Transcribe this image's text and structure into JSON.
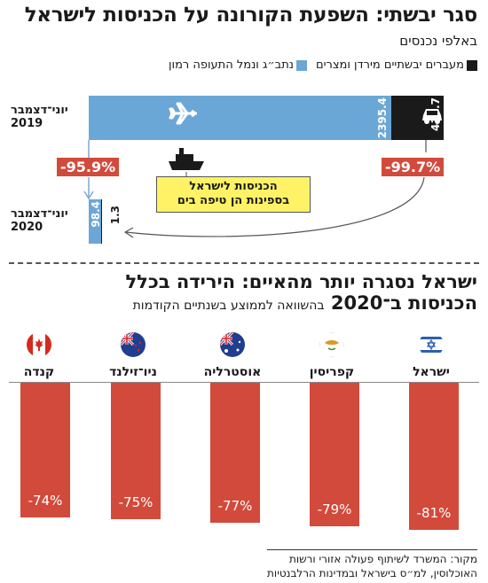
{
  "title": "סגר יבשתי: השפעת הקורונה על הכניסות לישראל",
  "subtitle": "באלפי נכנסים",
  "legend": {
    "items": [
      {
        "label": "מעברים יבשתיים מירדן ומצרים",
        "color": "#1a1a1a"
      },
      {
        "label": "נתב״ג ונמל התעופה רמון",
        "color": "#6ba7d6"
      }
    ]
  },
  "colors": {
    "air": "#6ba7d6",
    "land": "#1a1a1a",
    "drop": "#d24a3b",
    "callout": "#fff266"
  },
  "period_labels": {
    "p2019_line1": "יוני־דצמבר",
    "p2019_line2": "2019",
    "p2020_line1": "יוני־דצמבר",
    "p2020_line2": "2020"
  },
  "icons": {
    "air": "airplane-icon",
    "land": "car-icon",
    "sea": "ship-icon"
  },
  "drops": {
    "air": "-95.9%",
    "land": "-99.7%"
  },
  "callout": {
    "line1": "הכניסות לישראל",
    "line2": "בספינות הן טיפה בים"
  },
  "section2": {
    "title_line1": "ישראל נסגרה יותר מהאיים: הירידה בכלל",
    "title_line2": "הכניסות ב־2020",
    "note": "בהשוואה לממוצע בשנתיים הקודמות"
  },
  "source": {
    "line1": "מקור: המשרד לשיתוף פעולה אזורי ורשות",
    "line2": "האוכלוסין, למ״ס בישראל ובמדינות הרלבנטיות"
  },
  "chart_data": [
    {
      "type": "bar",
      "categories": [
        "יוני־דצמבר 2019",
        "יוני־דצמבר 2020"
      ],
      "series": [
        {
          "name": "נתב״ג ונמל התעופה רמון",
          "values": [
            2395.4,
            98.4
          ],
          "labels": [
            "2395.4",
            "98.4"
          ]
        },
        {
          "name": "מעברים יבשתיים מירדן ומצרים",
          "values": [
            410.7,
            1.3
          ],
          "labels": [
            "410.7",
            "1.3"
          ]
        }
      ],
      "title": "סגר יבשתי: השפעת הקורונה על הכניסות לישראל",
      "ylabel": "באלפי נכנסים"
    },
    {
      "type": "bar",
      "categories": [
        "ישראל",
        "קפריסין",
        "אוסטרליה",
        "ניו־זילנד",
        "קנדה"
      ],
      "values": [
        -81,
        -79,
        -77,
        -75,
        -74
      ],
      "labels": [
        "-81%",
        "-79%",
        "-77%",
        "-75%",
        "-74%"
      ],
      "title": "ישראל נסגרה יותר מהאיים: הירידה בכלל הכניסות ב־2020",
      "subtitle": "בהשוואה לממוצע בשנתיים הקודמות",
      "flags": [
        "israel-flag-icon",
        "cyprus-flag-icon",
        "australia-flag-icon",
        "new-zealand-flag-icon",
        "canada-flag-icon"
      ]
    }
  ]
}
